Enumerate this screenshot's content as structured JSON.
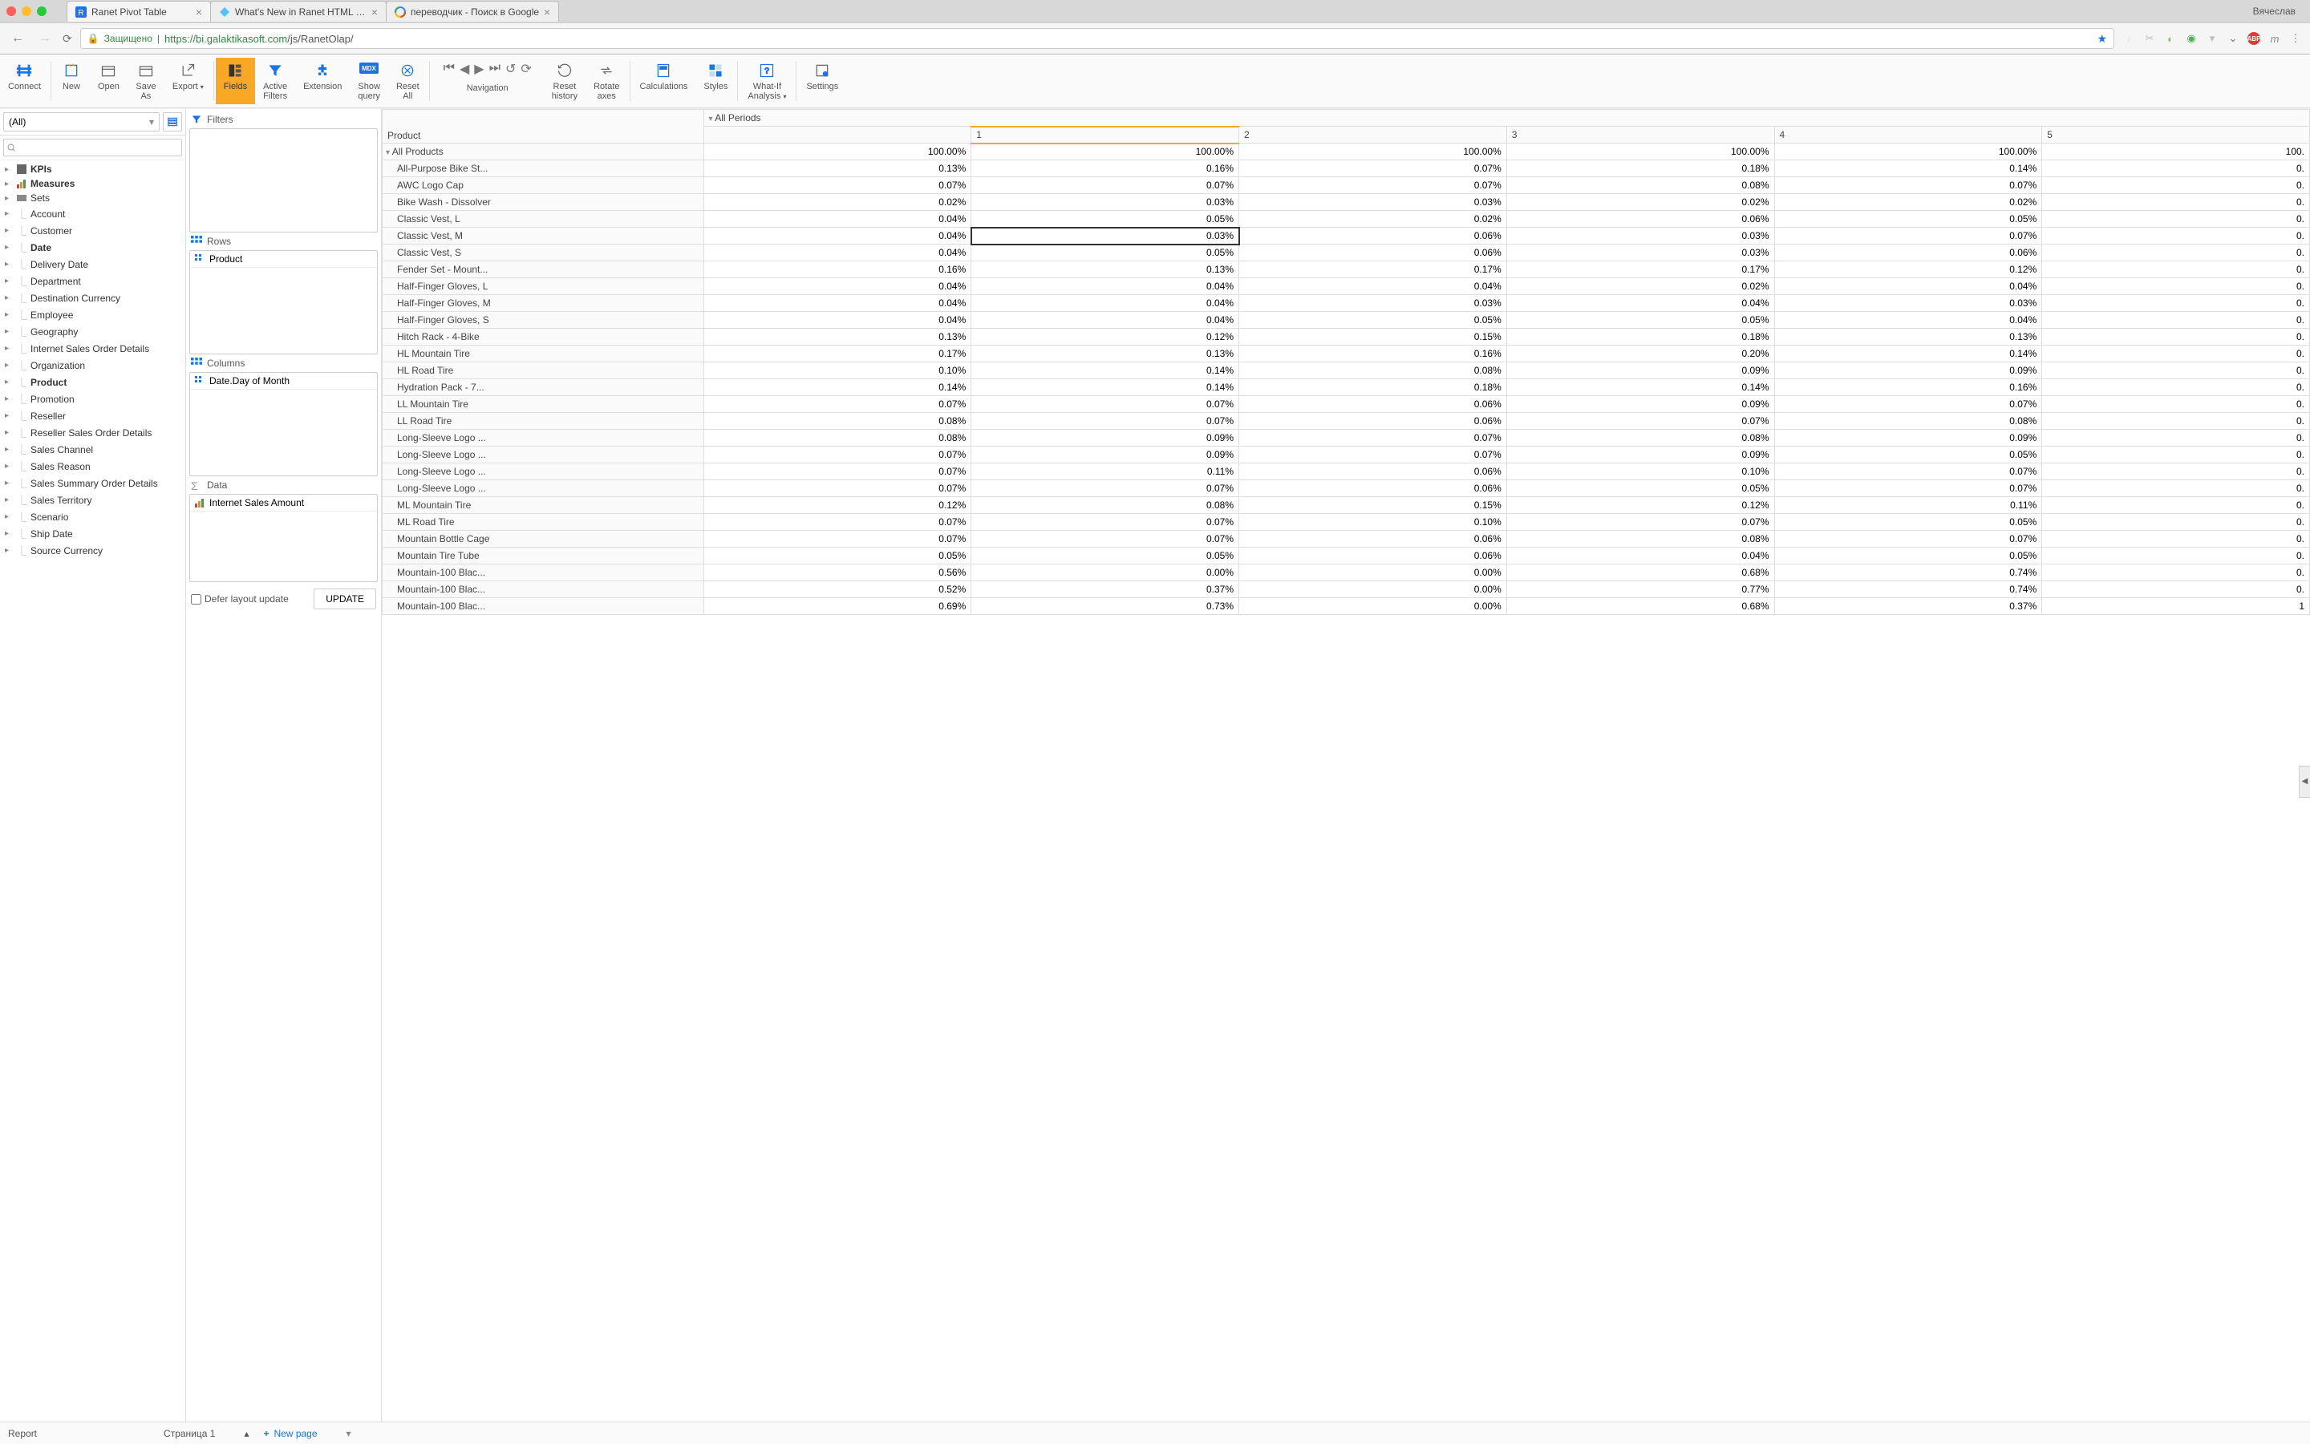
{
  "browser": {
    "user": "Вячеслав",
    "secure_label": "Защищено",
    "url_host": "https://bi.galaktikasoft.com",
    "url_path": "/js/RanetOlap/",
    "tabs": [
      {
        "title": "Ranet Pivot Table",
        "active": true
      },
      {
        "title": "What's New in Ranet HTML Piv",
        "active": false
      },
      {
        "title": "переводчик - Поиск в Google",
        "active": false
      }
    ]
  },
  "ribbon": [
    {
      "label": "Connect",
      "ic": "connect"
    },
    {
      "sep": true
    },
    {
      "label": "New",
      "ic": "new"
    },
    {
      "label": "Open",
      "ic": "open"
    },
    {
      "label": "Save As",
      "ic": "save"
    },
    {
      "label": "Export",
      "ic": "export",
      "dropdown": true
    },
    {
      "sep": true
    },
    {
      "label": "Fields",
      "ic": "fields",
      "active": true
    },
    {
      "label": "Active Filters",
      "ic": "filter"
    },
    {
      "label": "Extension",
      "ic": "ext"
    },
    {
      "label": "Show query",
      "ic": "mdx"
    },
    {
      "label": "Reset All",
      "ic": "reset"
    },
    {
      "sep": true
    },
    {
      "label": "",
      "ic": "nav-first",
      "navgroup": true
    },
    {
      "label": "",
      "ic": "nav-prev",
      "navgroup": true
    },
    {
      "label": "",
      "ic": "nav-next",
      "navgroup": true
    },
    {
      "label": "",
      "ic": "nav-last",
      "navgroup": true
    },
    {
      "label": "",
      "ic": "history",
      "navgroup": true
    },
    {
      "label": "",
      "ic": "refresh",
      "navgroup": true
    },
    {
      "navlabel": "Navigation"
    },
    {
      "label": "Reset history",
      "ic": "resethist"
    },
    {
      "label": "Rotate axes",
      "ic": "rotate"
    },
    {
      "sep": true
    },
    {
      "label": "Calculations",
      "ic": "calc"
    },
    {
      "label": "Styles",
      "ic": "styles"
    },
    {
      "sep": true
    },
    {
      "label": "What-If Analysis",
      "ic": "whatif",
      "dropdown": true
    },
    {
      "sep": true
    },
    {
      "label": "Settings",
      "ic": "settings"
    }
  ],
  "sidebar": {
    "combo_value": "(All)",
    "tree": [
      {
        "label": "KPIs",
        "bold": true,
        "ic": "kpi"
      },
      {
        "label": "Measures",
        "bold": true,
        "ic": "measures"
      },
      {
        "label": "Sets",
        "ic": "sets"
      },
      {
        "label": "Account",
        "ic": "dim"
      },
      {
        "label": "Customer",
        "ic": "dim"
      },
      {
        "label": "Date",
        "bold": true,
        "ic": "dim"
      },
      {
        "label": "Delivery Date",
        "ic": "dim"
      },
      {
        "label": "Department",
        "ic": "dim"
      },
      {
        "label": "Destination Currency",
        "ic": "dim"
      },
      {
        "label": "Employee",
        "ic": "dim"
      },
      {
        "label": "Geography",
        "ic": "dim"
      },
      {
        "label": "Internet Sales Order Details",
        "ic": "dim"
      },
      {
        "label": "Organization",
        "ic": "dim"
      },
      {
        "label": "Product",
        "bold": true,
        "ic": "dim"
      },
      {
        "label": "Promotion",
        "ic": "dim"
      },
      {
        "label": "Reseller",
        "ic": "dim"
      },
      {
        "label": "Reseller Sales Order Details",
        "ic": "dim"
      },
      {
        "label": "Sales Channel",
        "ic": "dim"
      },
      {
        "label": "Sales Reason",
        "ic": "dim"
      },
      {
        "label": "Sales Summary Order Details",
        "ic": "dim"
      },
      {
        "label": "Sales Territory",
        "ic": "dim"
      },
      {
        "label": "Scenario",
        "ic": "dim"
      },
      {
        "label": "Ship Date",
        "ic": "dim"
      },
      {
        "label": "Source Currency",
        "ic": "dim"
      }
    ]
  },
  "designer": {
    "filters_label": "Filters",
    "rows_label": "Rows",
    "rows_items": [
      {
        "label": "Product"
      }
    ],
    "columns_label": "Columns",
    "columns_items": [
      {
        "label": "Date.Day of Month"
      }
    ],
    "data_label": "Data",
    "data_items": [
      {
        "label": "Internet Sales Amount"
      }
    ],
    "defer_label": "Defer layout update",
    "update_label": "UPDATE"
  },
  "pivot": {
    "corner_label": "Product",
    "col_all": "All Periods",
    "cols": [
      "1",
      "2",
      "3",
      "4",
      "5"
    ],
    "row_all": "All Products",
    "all_values": [
      "100.00%",
      "100.00%",
      "100.00%",
      "100.00%",
      "100.00%",
      "100."
    ],
    "rows": [
      {
        "label": "All-Purpose Bike St...",
        "vals": [
          "0.13%",
          "0.16%",
          "0.07%",
          "0.18%",
          "0.14%",
          "0."
        ]
      },
      {
        "label": "AWC Logo Cap",
        "vals": [
          "0.07%",
          "0.07%",
          "0.07%",
          "0.08%",
          "0.07%",
          "0."
        ]
      },
      {
        "label": "Bike Wash - Dissolver",
        "vals": [
          "0.02%",
          "0.03%",
          "0.03%",
          "0.02%",
          "0.02%",
          "0."
        ]
      },
      {
        "label": "Classic Vest, L",
        "vals": [
          "0.04%",
          "0.05%",
          "0.02%",
          "0.06%",
          "0.05%",
          "0."
        ]
      },
      {
        "label": "Classic Vest, M",
        "vals": [
          "0.04%",
          "0.03%",
          "0.06%",
          "0.03%",
          "0.07%",
          "0."
        ],
        "sel": 1
      },
      {
        "label": "Classic Vest, S",
        "vals": [
          "0.04%",
          "0.05%",
          "0.06%",
          "0.03%",
          "0.06%",
          "0."
        ]
      },
      {
        "label": "Fender Set - Mount...",
        "vals": [
          "0.16%",
          "0.13%",
          "0.17%",
          "0.17%",
          "0.12%",
          "0."
        ]
      },
      {
        "label": "Half-Finger Gloves, L",
        "vals": [
          "0.04%",
          "0.04%",
          "0.04%",
          "0.02%",
          "0.04%",
          "0."
        ]
      },
      {
        "label": "Half-Finger Gloves, M",
        "vals": [
          "0.04%",
          "0.04%",
          "0.03%",
          "0.04%",
          "0.03%",
          "0."
        ]
      },
      {
        "label": "Half-Finger Gloves, S",
        "vals": [
          "0.04%",
          "0.04%",
          "0.05%",
          "0.05%",
          "0.04%",
          "0."
        ]
      },
      {
        "label": "Hitch Rack - 4-Bike",
        "vals": [
          "0.13%",
          "0.12%",
          "0.15%",
          "0.18%",
          "0.13%",
          "0."
        ]
      },
      {
        "label": "HL Mountain Tire",
        "vals": [
          "0.17%",
          "0.13%",
          "0.16%",
          "0.20%",
          "0.14%",
          "0."
        ]
      },
      {
        "label": "HL Road Tire",
        "vals": [
          "0.10%",
          "0.14%",
          "0.08%",
          "0.09%",
          "0.09%",
          "0."
        ]
      },
      {
        "label": "Hydration Pack - 7...",
        "vals": [
          "0.14%",
          "0.14%",
          "0.18%",
          "0.14%",
          "0.16%",
          "0."
        ]
      },
      {
        "label": "LL Mountain Tire",
        "vals": [
          "0.07%",
          "0.07%",
          "0.06%",
          "0.09%",
          "0.07%",
          "0."
        ]
      },
      {
        "label": "LL Road Tire",
        "vals": [
          "0.08%",
          "0.07%",
          "0.06%",
          "0.07%",
          "0.08%",
          "0."
        ]
      },
      {
        "label": "Long-Sleeve Logo ...",
        "vals": [
          "0.08%",
          "0.09%",
          "0.07%",
          "0.08%",
          "0.09%",
          "0."
        ]
      },
      {
        "label": "Long-Sleeve Logo ...",
        "vals": [
          "0.07%",
          "0.09%",
          "0.07%",
          "0.09%",
          "0.05%",
          "0."
        ]
      },
      {
        "label": "Long-Sleeve Logo ...",
        "vals": [
          "0.07%",
          "0.11%",
          "0.06%",
          "0.10%",
          "0.07%",
          "0."
        ]
      },
      {
        "label": "Long-Sleeve Logo ...",
        "vals": [
          "0.07%",
          "0.07%",
          "0.06%",
          "0.05%",
          "0.07%",
          "0."
        ]
      },
      {
        "label": "ML Mountain Tire",
        "vals": [
          "0.12%",
          "0.08%",
          "0.15%",
          "0.12%",
          "0.11%",
          "0."
        ]
      },
      {
        "label": "ML Road Tire",
        "vals": [
          "0.07%",
          "0.07%",
          "0.10%",
          "0.07%",
          "0.05%",
          "0."
        ]
      },
      {
        "label": "Mountain Bottle Cage",
        "vals": [
          "0.07%",
          "0.07%",
          "0.06%",
          "0.08%",
          "0.07%",
          "0."
        ]
      },
      {
        "label": "Mountain Tire Tube",
        "vals": [
          "0.05%",
          "0.05%",
          "0.06%",
          "0.04%",
          "0.05%",
          "0."
        ]
      },
      {
        "label": "Mountain-100 Blac...",
        "vals": [
          "0.56%",
          "0.00%",
          "0.00%",
          "0.68%",
          "0.74%",
          "0."
        ]
      },
      {
        "label": "Mountain-100 Blac...",
        "vals": [
          "0.52%",
          "0.37%",
          "0.00%",
          "0.77%",
          "0.74%",
          "0."
        ]
      },
      {
        "label": "Mountain-100 Blac...",
        "vals": [
          "0.69%",
          "0.73%",
          "0.00%",
          "0.68%",
          "0.37%",
          "1"
        ]
      }
    ]
  },
  "footer": {
    "report_label": "Report",
    "page_label": "Страница 1",
    "new_page_label": "New page"
  },
  "colors": {
    "accent": "#f9a825",
    "link": "#1a73e8",
    "border": "#ddd"
  }
}
